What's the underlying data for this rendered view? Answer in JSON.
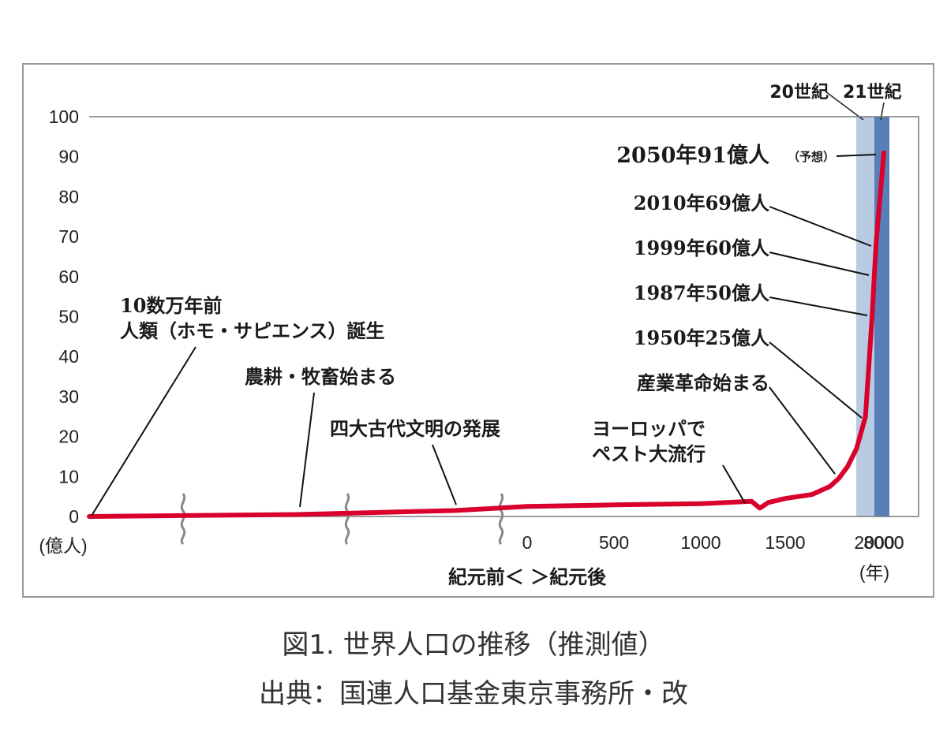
{
  "chart_data": {
    "type": "line",
    "title": "",
    "ylabel": "(億人)",
    "xlabel": "紀元前＜ ＞紀元後",
    "x_unit": "(年)",
    "ylim": [
      0,
      100
    ],
    "y_ticks": [
      0,
      10,
      20,
      30,
      40,
      50,
      60,
      70,
      80,
      90,
      100
    ],
    "x_ticks": [
      "8000",
      "3000",
      "0",
      "500",
      "1000",
      "1500",
      "2000"
    ],
    "axis_break_marks": 3,
    "highlight_bands": [
      {
        "label": "20世紀",
        "color": "#b9cbe3"
      },
      {
        "label": "21世紀",
        "color": "#5a7fb8"
      }
    ],
    "series": [
      {
        "color": "#d9002b",
        "points": [
          {
            "x": "10数万年前",
            "y": 0
          },
          {
            "x": "-8000",
            "y": 0.5
          },
          {
            "x": "-3000",
            "y": 1.5
          },
          {
            "x": "0",
            "y": 2.5
          },
          {
            "x": "500",
            "y": 2.9
          },
          {
            "x": "1000",
            "y": 3.2
          },
          {
            "x": "1300",
            "y": 3.8
          },
          {
            "x": "1350",
            "y": 2.1
          },
          {
            "x": "1400",
            "y": 3.5
          },
          {
            "x": "1500",
            "y": 4.5
          },
          {
            "x": "1650",
            "y": 5.5
          },
          {
            "x": "1750",
            "y": 7.5
          },
          {
            "x": "1800",
            "y": 9.5
          },
          {
            "x": "1850",
            "y": 12.5
          },
          {
            "x": "1900",
            "y": 17
          },
          {
            "x": "1950",
            "y": 25
          },
          {
            "x": "1987",
            "y": 50
          },
          {
            "x": "1999",
            "y": 60
          },
          {
            "x": "2010",
            "y": 69
          },
          {
            "x": "2050",
            "y": 91
          }
        ]
      }
    ],
    "annotations": [
      {
        "id": "a2050",
        "text": "2050年91億人",
        "note": "（予想）"
      },
      {
        "id": "a2010",
        "text": "2010年69億人"
      },
      {
        "id": "a1999",
        "text": "1999年60億人"
      },
      {
        "id": "a1987",
        "text": "1987年50億人"
      },
      {
        "id": "a1950",
        "text": "1950年25億人"
      },
      {
        "id": "aind",
        "text": "産業革命始まる"
      },
      {
        "id": "apest",
        "lines": [
          "ヨーロッパで",
          "ペスト大流行"
        ]
      },
      {
        "id": "aciv",
        "text": "四大古代文明の発展"
      },
      {
        "id": "aagri",
        "text": "農耕・牧畜始まる"
      },
      {
        "id": "ahuman",
        "lines": [
          "10数万年前",
          "人類（ホモ・サピエンス）誕生"
        ]
      }
    ]
  },
  "caption": {
    "line1": "図1.  世界人口の推移（推測値）",
    "line2": "出典：国連人口基金東京事務所・改"
  },
  "colors": {
    "line": "#d9002b",
    "band20": "#b9cbe3",
    "band21": "#5a7fb8",
    "frame": "#9a9a9a",
    "plot_border": "#7a7a7a"
  }
}
